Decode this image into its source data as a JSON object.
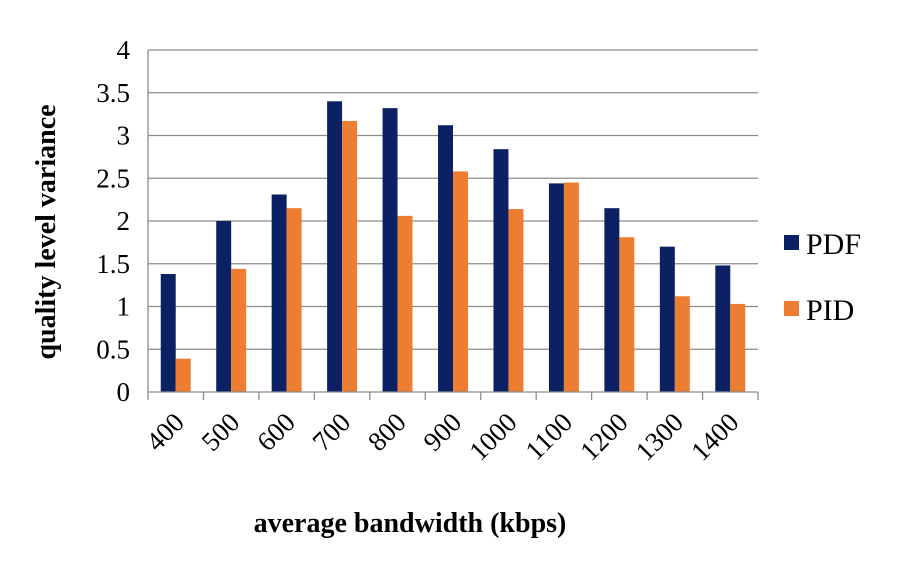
{
  "chart_data": {
    "type": "bar",
    "title": "",
    "xlabel": "average bandwidth (kbps)",
    "ylabel": "quality level variance",
    "categories": [
      "400",
      "500",
      "600",
      "700",
      "800",
      "900",
      "1000",
      "1100",
      "1200",
      "1300",
      "1400"
    ],
    "series": [
      {
        "name": "PDF",
        "color": "#0b2163",
        "values": [
          1.38,
          2.0,
          2.31,
          3.4,
          3.32,
          3.12,
          2.84,
          2.44,
          2.15,
          1.7,
          1.48
        ]
      },
      {
        "name": "PID",
        "color": "#ed7d31",
        "values": [
          0.39,
          1.44,
          2.15,
          3.17,
          2.06,
          2.58,
          2.14,
          2.45,
          1.81,
          1.12,
          1.03
        ]
      }
    ],
    "ylim": [
      0,
      4
    ],
    "yticks": [
      "0",
      "0.5",
      "1",
      "1.5",
      "2",
      "2.5",
      "3",
      "3.5",
      "4"
    ],
    "grid": "horizontal",
    "legend": "right"
  }
}
